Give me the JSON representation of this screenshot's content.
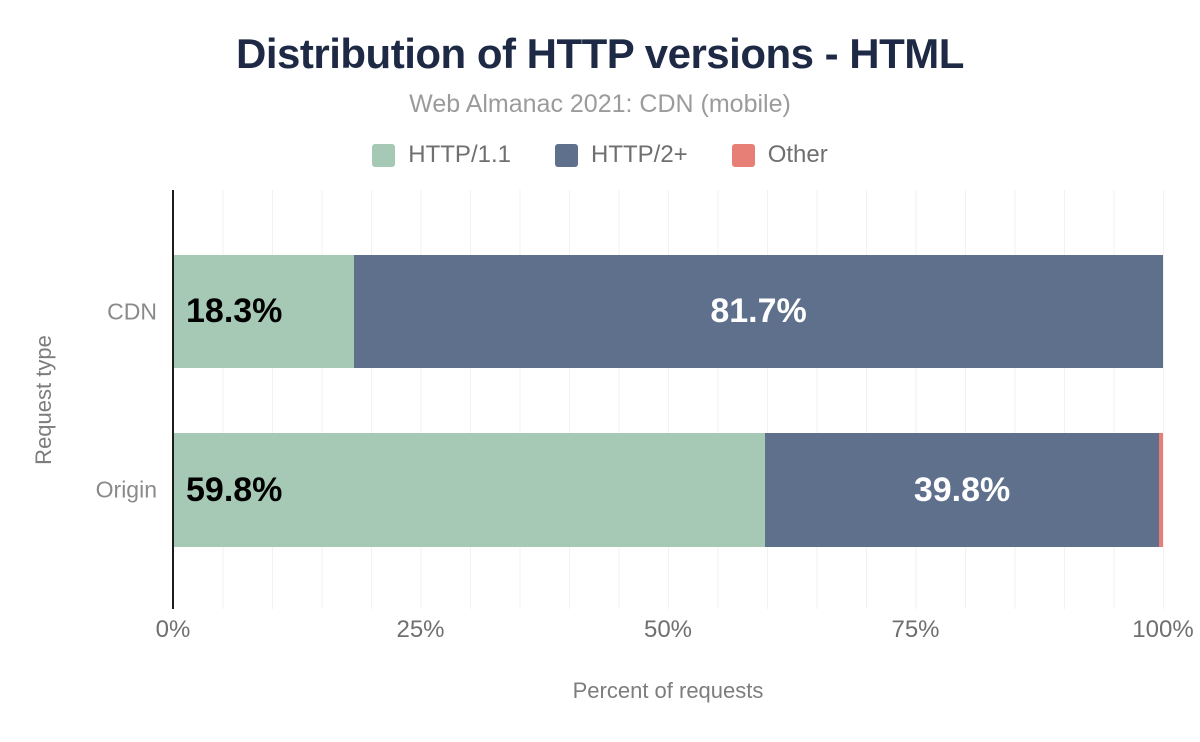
{
  "header": {
    "title": "Distribution of HTTP versions - HTML",
    "subtitle": "Web Almanac 2021: CDN (mobile)"
  },
  "chart_data": {
    "type": "bar",
    "orientation": "horizontal",
    "stacked": true,
    "title": "Distribution of HTTP versions - HTML",
    "subtitle": "Web Almanac 2021: CDN (mobile)",
    "categories": [
      "CDN",
      "Origin"
    ],
    "series": [
      {
        "name": "HTTP/1.1",
        "color": "#a6c9b6",
        "values": [
          18.3,
          59.8
        ]
      },
      {
        "name": "HTTP/2+",
        "color": "#5e708c",
        "values": [
          81.7,
          39.8
        ]
      },
      {
        "name": "Other",
        "color": "#e87f76",
        "values": [
          0.0,
          0.4
        ]
      }
    ],
    "data_labels": [
      [
        "18.3%",
        "81.7%",
        ""
      ],
      [
        "59.8%",
        "39.8%",
        ""
      ]
    ],
    "xlabel": "Percent of requests",
    "ylabel": "Request type",
    "x_ticks": [
      "0%",
      "25%",
      "50%",
      "75%",
      "100%"
    ],
    "x_tick_values": [
      0,
      25,
      50,
      75,
      100
    ],
    "xlim": [
      0,
      100
    ],
    "grid": "minor vertical gridlines every 5%",
    "legend_position": "top"
  },
  "colors": {
    "title": "#1e2a45",
    "subtitle_text": "#9b9b9b",
    "axis_text": "#6f6f6f",
    "gridline": "#f2f2f2",
    "axis_line": "#1c1c1c",
    "series_http11": "#a6c9b6",
    "series_http2plus": "#5e708c",
    "series_other": "#e87f76"
  }
}
